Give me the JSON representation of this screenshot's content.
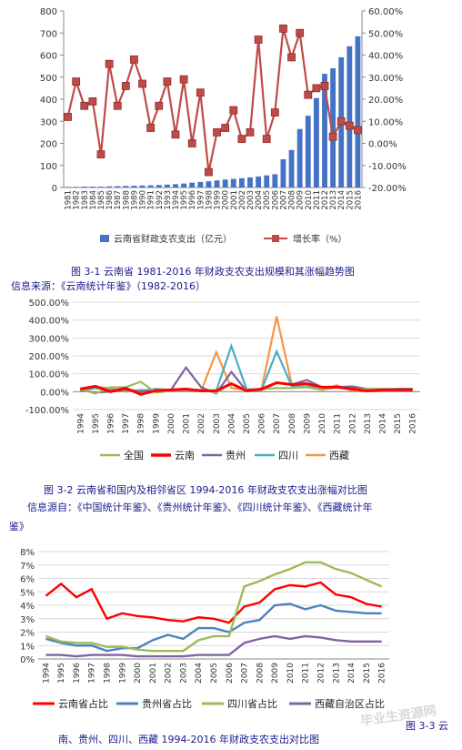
{
  "captions": {
    "fig1": "图 3-1   云南省 1981-2016 年财政支农支出规模和其涨幅趋势图",
    "src1": "信息来源：《云南统计年鉴》（1982-2016）",
    "fig2": "图 3-2   云南省和国内及相邻省区 1994-2016 年财政支农支出涨幅对比图",
    "src2a": "信息源自：《中国统计年鉴》、《贵州统计年鉴》、《四川统计年鉴》、《西藏统计年",
    "src2b": "鉴》",
    "fig3a": "图 3-3   云",
    "fig3b": "南、贵州、四川、西藏 1994-2016 年财政支农支出对比图",
    "watermark": "毕业生资源网"
  },
  "colors": {
    "bar": "#4472c4",
    "growth": "#be4b48",
    "national": "#9bbb59",
    "yunnan": "#ff0000",
    "guizhou": "#8064a2",
    "sichuan": "#4bacc6",
    "tibet": "#f79646",
    "c3_yunnan": "#ff0000",
    "c3_guizhou": "#4f81bd",
    "c3_sichuan": "#9bbb59",
    "c3_tibet": "#8064a2",
    "caption": "#1a1a8c"
  },
  "chart_data": [
    {
      "type": "bar",
      "categories": [
        "1981",
        "1982",
        "1983",
        "1984",
        "1985",
        "1986",
        "1987",
        "1988",
        "1989",
        "1990",
        "1991",
        "1992",
        "1993",
        "1994",
        "1995",
        "1996",
        "1997",
        "1998",
        "1999",
        "2000",
        "2001",
        "2002",
        "2003",
        "2004",
        "2005",
        "2006",
        "2007",
        "2008",
        "2009",
        "2010",
        "2011",
        "2012",
        "2013",
        "2014",
        "2015",
        "2016"
      ],
      "series": [
        {
          "name": "云南省财政支农支出（亿元）",
          "kind": "bar",
          "axis": "left",
          "values": [
            3,
            3,
            4,
            4,
            4,
            5,
            6,
            7,
            8,
            9,
            10,
            11,
            13,
            15,
            18,
            22,
            25,
            28,
            32,
            36,
            39,
            42,
            46,
            50,
            55,
            60,
            128,
            170,
            265,
            325,
            405,
            515,
            540,
            590,
            640,
            685
          ]
        },
        {
          "name": "增长率（%）",
          "kind": "line",
          "axis": "right",
          "values": [
            12,
            28,
            17,
            19,
            -5,
            36,
            17,
            26,
            38,
            27,
            7,
            17,
            28,
            4,
            29,
            0,
            23,
            -13,
            5,
            7,
            15,
            2,
            5,
            47,
            2,
            14,
            52,
            39,
            50,
            22,
            25,
            26,
            3,
            10,
            8,
            6
          ]
        }
      ],
      "y_left": {
        "min": 0,
        "max": 800,
        "step": 100
      },
      "y_right": {
        "min": -20,
        "max": 60,
        "step": 10,
        "unit": "%"
      },
      "legend": "bottom"
    },
    {
      "type": "line",
      "categories": [
        "1994",
        "1995",
        "1996",
        "1997",
        "1998",
        "1999",
        "2000",
        "2001",
        "2002",
        "2003",
        "2004",
        "2005",
        "2006",
        "2007",
        "2008",
        "2009",
        "2010",
        "2011",
        "2012",
        "2013",
        "2014",
        "2015",
        "2016"
      ],
      "series": [
        {
          "name": "全国",
          "values": [
            15,
            -10,
            25,
            25,
            55,
            -5,
            5,
            10,
            10,
            -5,
            45,
            10,
            15,
            20,
            20,
            25,
            10,
            25,
            15,
            15,
            15,
            10,
            10
          ]
        },
        {
          "name": "云南",
          "values": [
            15,
            30,
            0,
            20,
            -15,
            5,
            10,
            15,
            5,
            5,
            45,
            5,
            15,
            50,
            40,
            45,
            25,
            25,
            15,
            5,
            10,
            10,
            10
          ]
        },
        {
          "name": "贵州",
          "values": [
            10,
            -5,
            0,
            10,
            0,
            10,
            10,
            135,
            25,
            -10,
            110,
            5,
            10,
            50,
            40,
            65,
            25,
            25,
            30,
            15,
            10,
            15,
            15
          ]
        },
        {
          "name": "四川",
          "values": [
            5,
            20,
            10,
            10,
            5,
            15,
            10,
            5,
            10,
            5,
            255,
            15,
            10,
            225,
            30,
            30,
            25,
            30,
            20,
            15,
            15,
            15,
            15
          ]
        },
        {
          "name": "西藏",
          "values": [
            10,
            25,
            20,
            0,
            10,
            5,
            10,
            15,
            5,
            220,
            20,
            10,
            15,
            420,
            40,
            25,
            15,
            35,
            5,
            15,
            15,
            15,
            15
          ]
        }
      ],
      "y": {
        "min": -100,
        "max": 500,
        "step": 100,
        "unit": "%"
      },
      "legend": "bottom"
    },
    {
      "type": "line",
      "categories": [
        "1994",
        "1995",
        "1996",
        "1997",
        "1998",
        "1999",
        "2000",
        "2001",
        "2002",
        "2003",
        "2004",
        "2005",
        "2006",
        "2007",
        "2008",
        "2009",
        "2010",
        "2011",
        "2012",
        "2013",
        "2014",
        "2015",
        "2016"
      ],
      "series": [
        {
          "name": "云南省占比",
          "values": [
            4.7,
            5.6,
            4.6,
            5.2,
            3.0,
            3.4,
            3.2,
            3.1,
            2.9,
            2.8,
            3.1,
            3.0,
            2.7,
            3.9,
            4.2,
            5.2,
            5.5,
            5.4,
            5.7,
            4.8,
            4.6,
            4.1,
            3.9
          ]
        },
        {
          "name": "贵州省占比",
          "values": [
            1.5,
            1.2,
            1.0,
            1.0,
            0.6,
            0.8,
            0.8,
            1.4,
            1.8,
            1.5,
            2.3,
            2.3,
            2.0,
            2.7,
            2.9,
            4.0,
            4.1,
            3.7,
            4.0,
            3.6,
            3.5,
            3.4,
            3.4
          ]
        },
        {
          "name": "四川省占比",
          "values": [
            1.7,
            1.3,
            1.2,
            1.2,
            0.9,
            0.9,
            0.7,
            0.6,
            0.6,
            0.6,
            1.4,
            1.7,
            1.7,
            5.4,
            5.8,
            6.3,
            6.7,
            7.2,
            7.2,
            6.7,
            6.4,
            5.9,
            5.4
          ]
        },
        {
          "name": "西藏自治区占比",
          "values": [
            0.3,
            0.3,
            0.2,
            0.3,
            0.3,
            0.3,
            0.2,
            0.2,
            0.2,
            0.2,
            0.3,
            0.3,
            0.3,
            1.2,
            1.5,
            1.7,
            1.5,
            1.7,
            1.6,
            1.4,
            1.3,
            1.3,
            1.3
          ]
        }
      ],
      "y": {
        "min": 0,
        "max": 8,
        "step": 1,
        "unit": "%"
      },
      "legend": "bottom"
    }
  ]
}
